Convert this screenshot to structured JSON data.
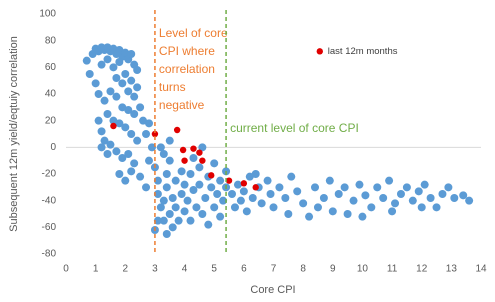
{
  "chart_data": {
    "type": "scatter",
    "xlabel": "Core CPI",
    "ylabel": "Subsequent 12m yield/eqtuiy correlation",
    "xlim": [
      0,
      14
    ],
    "xticks": [
      0,
      1,
      2,
      3,
      4,
      5,
      6,
      7,
      8,
      9,
      10,
      11,
      12,
      13,
      14
    ],
    "ylim": [
      -80,
      100
    ],
    "yticks": [
      -80,
      -60,
      -40,
      -20,
      0,
      20,
      40,
      60,
      80,
      100
    ],
    "legend": "upper right",
    "series": [
      {
        "color": "#5b9bd5",
        "x": [
          0.7,
          0.9,
          1.0,
          1.1,
          1.2,
          1.3,
          1.4,
          1.5,
          1.6,
          1.7,
          1.8,
          1.9,
          2.0,
          2.1,
          2.2,
          2.3,
          2.4,
          1.2,
          1.4,
          1.6,
          1.8,
          2.0,
          2.2,
          2.4,
          1.7,
          1.9,
          2.1,
          2.3,
          2.5,
          2.6,
          0.8,
          1.0,
          1.1,
          1.3,
          1.5,
          1.7,
          1.9,
          2.1,
          2.3,
          1.4,
          1.6,
          1.8,
          2.0,
          2.2,
          2.4,
          1.1,
          1.2,
          1.3,
          1.5,
          1.7,
          1.9,
          2.1,
          2.3,
          1.8,
          2.0,
          2.2,
          2.5,
          2.7,
          2.8,
          2.9,
          2.7,
          2.8,
          1.4,
          1.2,
          3.0,
          3.1,
          3.1,
          3.2,
          3.3,
          3.3,
          3.4,
          3.4,
          3.5,
          3.5,
          3.6,
          3.6,
          3.7,
          3.7,
          3.8,
          3.9,
          3.9,
          4.0,
          4.0,
          3.2,
          3.5,
          3.3,
          3.0,
          3.1,
          3.4,
          4.1,
          4.2,
          4.2,
          4.3,
          4.4,
          4.5,
          4.5,
          4.6,
          4.7,
          4.8,
          4.8,
          4.9,
          5.0,
          5.0,
          5.1,
          5.2,
          5.2,
          5.3,
          5.4,
          5.4,
          4.3,
          4.6,
          5.6,
          5.7,
          5.8,
          5.9,
          6.0,
          6.1,
          6.2,
          6.3,
          6.5,
          6.6,
          6.8,
          6.9,
          7.0,
          7.2,
          7.4,
          7.6,
          7.8,
          8.0,
          7.5,
          6.4,
          8.2,
          8.4,
          8.5,
          8.7,
          8.9,
          9.0,
          9.2,
          9.4,
          9.5,
          9.7,
          9.9,
          10.1,
          10.3,
          10.5,
          10.7,
          10.9,
          11.1,
          11.3,
          11.5,
          11.7,
          11.9,
          12.1,
          12.3,
          12.5,
          12.7,
          12.9,
          13.1,
          13.4,
          13.6,
          11.0,
          10.0,
          12.0
        ],
        "values": [
          65,
          70,
          74,
          72,
          75,
          73,
          75,
          72,
          74,
          70,
          73,
          68,
          71,
          66,
          70,
          62,
          58,
          62,
          66,
          60,
          64,
          55,
          50,
          45,
          52,
          48,
          42,
          38,
          30,
          20,
          55,
          48,
          40,
          35,
          42,
          38,
          30,
          28,
          25,
          25,
          20,
          18,
          15,
          10,
          5,
          20,
          12,
          5,
          2,
          -3,
          -8,
          -5,
          -12,
          -20,
          -25,
          -18,
          -22,
          -30,
          -10,
          0,
          10,
          18,
          -5,
          0,
          -15,
          -25,
          -35,
          -45,
          -40,
          -55,
          -30,
          -20,
          -50,
          -10,
          -60,
          -38,
          -25,
          -45,
          -55,
          -35,
          -18,
          -48,
          -28,
          0,
          5,
          -5,
          -62,
          -55,
          -65,
          -40,
          -20,
          -55,
          -32,
          -45,
          -15,
          -28,
          -50,
          -38,
          -22,
          -58,
          -30,
          -45,
          -12,
          -35,
          -25,
          -52,
          -40,
          -30,
          -18,
          -8,
          0,
          -35,
          -45,
          -28,
          -40,
          -33,
          -48,
          -22,
          -38,
          -30,
          -42,
          -25,
          -35,
          -45,
          -30,
          -38,
          -22,
          -33,
          -42,
          -50,
          -20,
          -52,
          -30,
          -45,
          -38,
          -25,
          -48,
          -35,
          -30,
          -50,
          -40,
          -28,
          -36,
          -45,
          -30,
          -38,
          -25,
          -42,
          -35,
          -30,
          -40,
          -33,
          -28,
          -38,
          -45,
          -35,
          -30,
          -38,
          -36,
          -40,
          -48,
          -52,
          -45
        ]
      },
      {
        "name": "last 12m months",
        "color": "#e00000",
        "x": [
          1.6,
          3.0,
          3.75,
          3.95,
          4.3,
          4.5,
          4.0,
          4.6,
          4.9,
          5.5,
          6.0,
          6.4
        ],
        "values": [
          16,
          10,
          13,
          -2,
          -1,
          -4,
          -10,
          -10,
          -21,
          -25,
          -27,
          -30
        ]
      }
    ],
    "vlines": [
      {
        "x": 3,
        "color": "#ed7d31",
        "label": [
          "Level of core",
          "CPI where",
          "correlation",
          "turns",
          "negative"
        ]
      },
      {
        "x": 5.4,
        "color": "#70ad47",
        "label": [
          "current level of core CPI"
        ]
      }
    ]
  }
}
